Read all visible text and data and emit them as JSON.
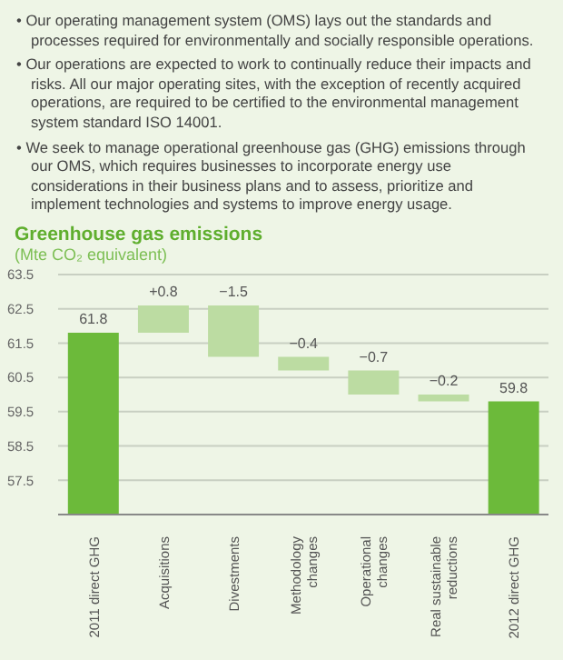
{
  "chart_data": {
    "type": "bar",
    "title": "Greenhouse gas emissions",
    "subtitle": "(Mte CO₂ equivalent)",
    "annotations": [
      "• Our operating management system (OMS) lays out the standards and processes required for environmentally and socially responsible operations.",
      "• Our operations are expected to work to continually reduce their impacts and risks. All our major operating sites, with the exception of recently acquired operations, are required to be certified to the environmental management system standard ISO 14001.",
      "• We seek to manage operational greenhouse gas (GHG) emissions through our OMS, which requires businesses to incorporate energy use considerations in their business plans and to assess, prioritize and implement technologies and systems to improve energy usage."
    ],
    "categories": [
      "2011 direct GHG",
      "Acquisitions",
      "Divestments",
      "Methodology changes",
      "Operational changes",
      "Real sustainable reductions",
      "2012 direct GHG"
    ],
    "values": [
      61.8,
      0.8,
      -1.5,
      -0.4,
      -0.7,
      -0.2,
      59.8
    ],
    "base": [
      0,
      61.8,
      62.6,
      61.1,
      60.7,
      60.0,
      0
    ],
    "colors": [
      "#6cba3a",
      "#bcdca2",
      "#bcdca2",
      "#bcdca2",
      "#bcdca2",
      "#bcdca2",
      "#6cba3a"
    ],
    "value_labels": [
      "61.8",
      "+0.8",
      "−1.5",
      "−0.4",
      "−0.7",
      "−0.2",
      "59.8"
    ],
    "ylim": [
      56.5,
      63.5
    ],
    "yticks": [
      57.5,
      58.5,
      59.5,
      60.5,
      61.5,
      62.5,
      63.5
    ],
    "grid": "y"
  }
}
